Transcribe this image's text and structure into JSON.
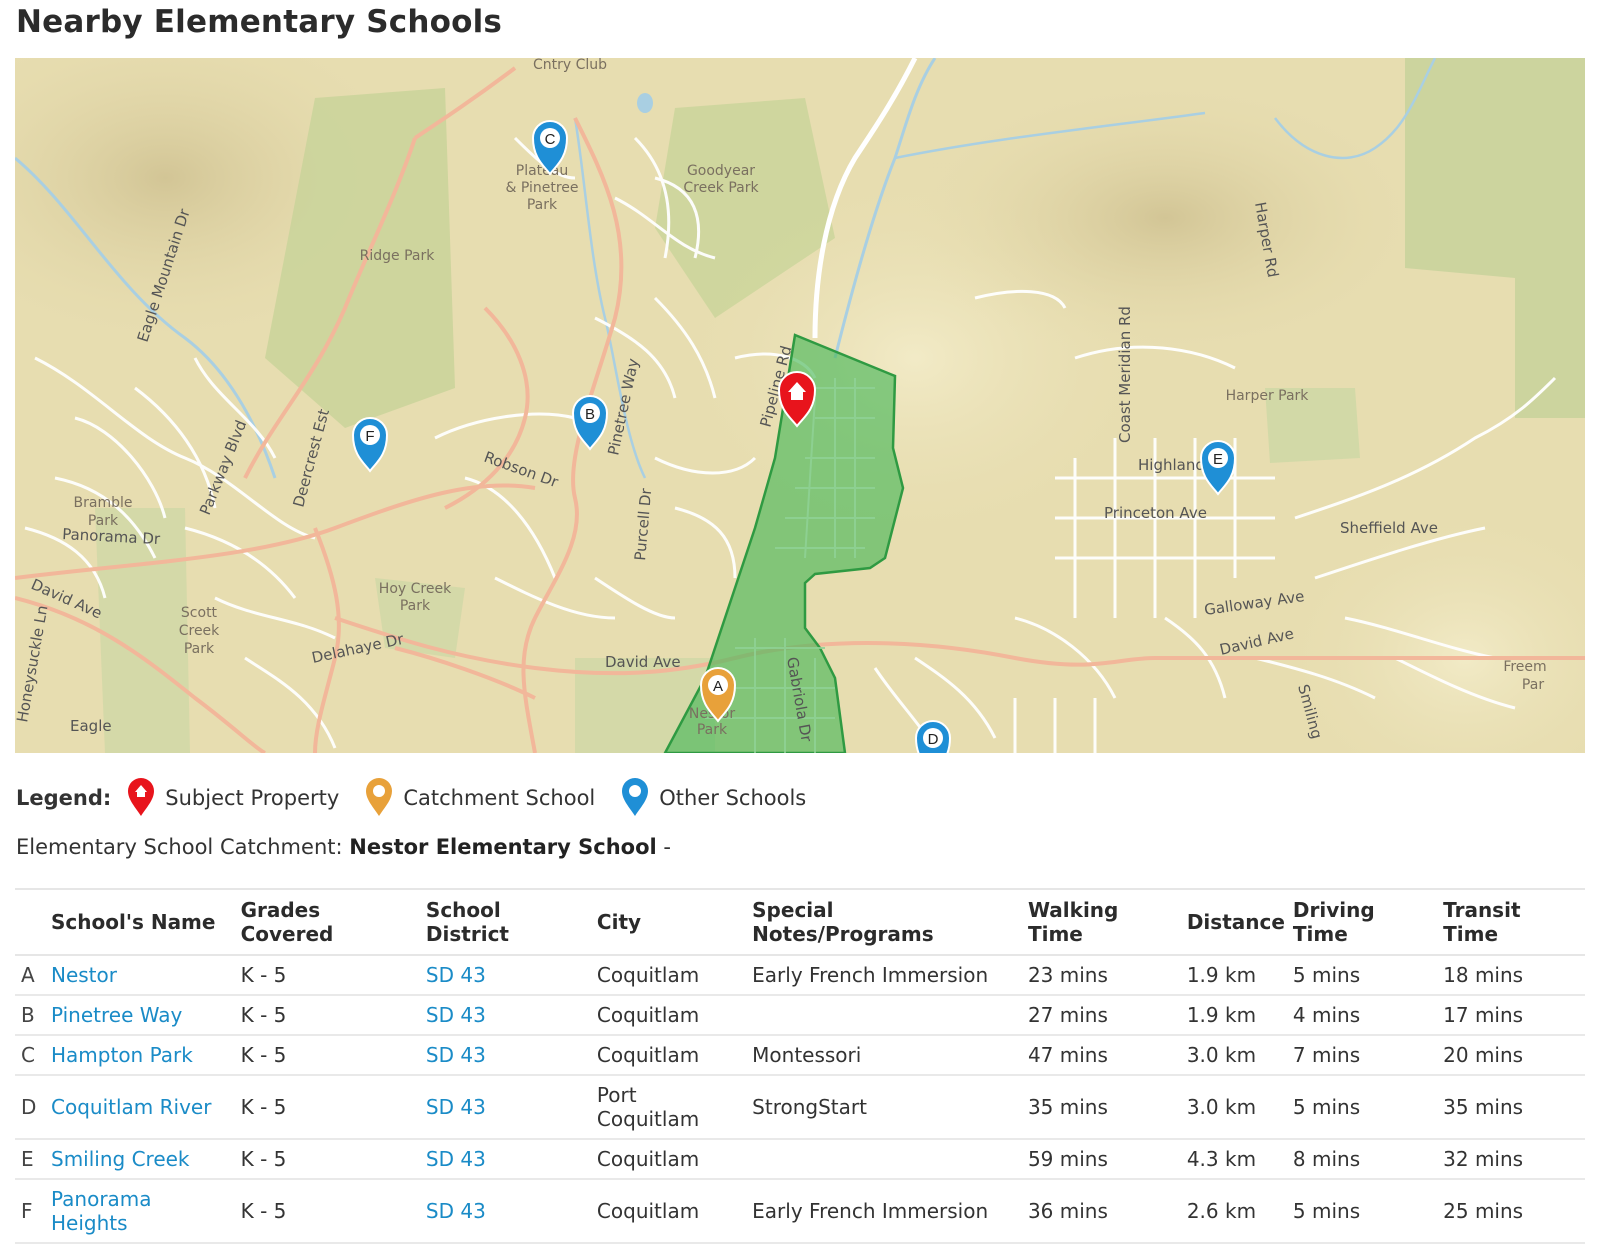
{
  "page": {
    "title": "Nearby Elementary Schools"
  },
  "map": {
    "place_labels": [
      "Cntry Club",
      "Goodyear Creek Park",
      "Ridge Park",
      "Plateau & Pinetree Park",
      "Bramble Park",
      "Hoy Creek Park",
      "Scott Creek Park",
      "Harper Park",
      "Nestor Park",
      "Freem Par"
    ],
    "street_labels": [
      "Eagle Mountain Dr",
      "Parkway Blvd",
      "Deercrest Est",
      "Robson Dr",
      "Pinetree Way",
      "Purcell Dr",
      "Panorama Dr",
      "David Ave",
      "Delahaye Dr",
      "Honeysuckle Ln",
      "Eagle",
      "Pipeline Rd",
      "Gabriola Dr",
      "Coast Meridian Rd",
      "Harper Rd",
      "Highland",
      "Princeton Ave",
      "Sheffield Ave",
      "Galloway Ave",
      "Smiling"
    ],
    "markers": [
      {
        "letter": "A",
        "type": "catchment"
      },
      {
        "letter": "B",
        "type": "other"
      },
      {
        "letter": "C",
        "type": "other"
      },
      {
        "letter": "D",
        "type": "other"
      },
      {
        "letter": "E",
        "type": "other"
      },
      {
        "letter": "F",
        "type": "other"
      }
    ],
    "subject_icon": "home-icon"
  },
  "legend": {
    "title": "Legend:",
    "items": [
      {
        "label": "Subject Property",
        "icon": "red-home-pin-icon",
        "color": "#e8141c"
      },
      {
        "label": "Catchment School",
        "icon": "orange-pin-icon",
        "color": "#e8a13a"
      },
      {
        "label": "Other Schools",
        "icon": "blue-pin-icon",
        "color": "#1f8fd6"
      }
    ]
  },
  "catchment": {
    "label": "Elementary School Catchment:",
    "school": "Nestor Elementary School",
    "suffix": "-"
  },
  "table": {
    "headers": [
      "School's Name",
      "Grades Covered",
      "School District",
      "City",
      "Special Notes/Programs",
      "Walking Time",
      "Distance",
      "Driving Time",
      "Transit Time"
    ],
    "rows": [
      {
        "letter": "A",
        "name": "Nestor",
        "grades": "K - 5",
        "district": "SD 43",
        "city": "Coquitlam",
        "notes": "Early French Immersion",
        "walking": "23 mins",
        "distance": "1.9 km",
        "driving": "5 mins",
        "transit": "18 mins"
      },
      {
        "letter": "B",
        "name": "Pinetree Way",
        "grades": "K - 5",
        "district": "SD 43",
        "city": "Coquitlam",
        "notes": "",
        "walking": "27 mins",
        "distance": "1.9 km",
        "driving": "4 mins",
        "transit": "17 mins"
      },
      {
        "letter": "C",
        "name": "Hampton Park",
        "grades": "K - 5",
        "district": "SD 43",
        "city": "Coquitlam",
        "notes": "Montessori",
        "walking": "47 mins",
        "distance": "3.0 km",
        "driving": "7 mins",
        "transit": "20 mins"
      },
      {
        "letter": "D",
        "name": "Coquitlam River",
        "grades": "K - 5",
        "district": "SD 43",
        "city": "Port Coquitlam",
        "notes": "StrongStart",
        "walking": "35 mins",
        "distance": "3.0 km",
        "driving": "5 mins",
        "transit": "35 mins"
      },
      {
        "letter": "E",
        "name": "Smiling Creek",
        "grades": "K - 5",
        "district": "SD 43",
        "city": "Coquitlam",
        "notes": "",
        "walking": "59 mins",
        "distance": "4.3 km",
        "driving": "8 mins",
        "transit": "32 mins"
      },
      {
        "letter": "F",
        "name": "Panorama Heights",
        "grades": "K - 5",
        "district": "SD 43",
        "city": "Coquitlam",
        "notes": "Early French Immersion",
        "walking": "36 mins",
        "distance": "2.6 km",
        "driving": "5 mins",
        "transit": "25 mins"
      }
    ]
  },
  "colors": {
    "link": "#1a8bc7",
    "catchment_area": "#4cb85a",
    "subject_pin": "#e8141c",
    "catchment_pin": "#e8a13a",
    "other_pin": "#1f8fd6"
  }
}
